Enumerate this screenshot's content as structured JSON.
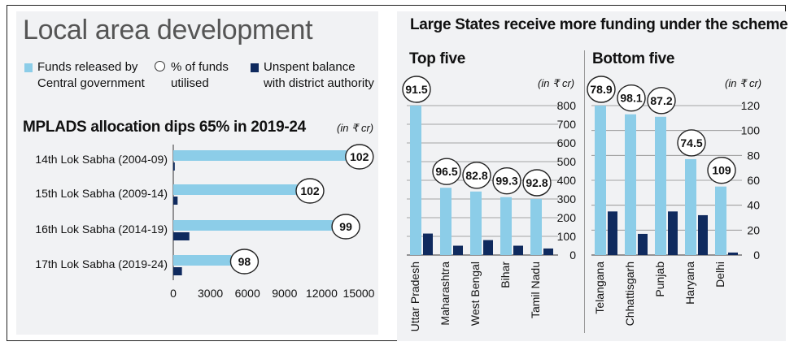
{
  "left": {
    "heading": "Local area development",
    "legend": [
      {
        "label_line1": "Funds released by",
        "label_line2": "Central government"
      },
      {
        "label_line1": "% of funds",
        "label_line2": "utilised"
      },
      {
        "label_line1": "Unspent balance",
        "label_line2": "with district authority"
      }
    ],
    "subheading": "MPLADS allocation dips 65% in 2019-24",
    "unit": "(in ₹ cr)"
  },
  "right": {
    "heading": "Large States receive more funding under the scheme",
    "top_title": "Top five",
    "bottom_title": "Bottom five",
    "unit_top": "(in ₹ cr)",
    "unit_bottom": "(in ₹ cr)"
  },
  "colors": {
    "light": "#8ccde8",
    "dark": "#0f2a5e",
    "panel": "#f1f2f4"
  },
  "chart_data": [
    {
      "type": "bar",
      "orientation": "horizontal",
      "categories": [
        "14th Lok Sabha (2004-09)",
        "15th Lok Sabha (2009-14)",
        "16th Lok Sabha (2014-19)",
        "17th Lok Sabha (2019-24)"
      ],
      "series": [
        {
          "name": "Funds released by Central government",
          "values": [
            14000,
            10000,
            12900,
            4700
          ]
        },
        {
          "name": "Unspent balance with district authority",
          "values": [
            120,
            350,
            1300,
            700
          ]
        }
      ],
      "utilised_pct": [
        "102",
        "102",
        "99",
        "98"
      ],
      "xticks": [
        "0",
        "3000",
        "6000",
        "9000",
        "12000",
        "15000"
      ],
      "xlim": [
        0,
        15000
      ],
      "ylabel": "(in ₹ cr)"
    },
    {
      "type": "bar",
      "title": "Top five",
      "categories": [
        "Uttar Pradesh",
        "Maharashtra",
        "West Bengal",
        "Bihar",
        "Tamil Nadu"
      ],
      "series": [
        {
          "name": "Funds released by Central government",
          "values": [
            800,
            360,
            340,
            310,
            300
          ]
        },
        {
          "name": "Unspent balance with district authority",
          "values": [
            115,
            50,
            80,
            50,
            35
          ]
        }
      ],
      "utilised_pct": [
        "91.5",
        "96.5",
        "82.8",
        "99.3",
        "92.8"
      ],
      "yticks": [
        "0",
        "100",
        "200",
        "300",
        "400",
        "500",
        "600",
        "700",
        "800"
      ],
      "ylim": [
        0,
        800
      ],
      "ylabel": "(in ₹ cr)"
    },
    {
      "type": "bar",
      "title": "Bottom five",
      "categories": [
        "Telangana",
        "Chhattisgarh",
        "Punjab",
        "Haryana",
        "Delhi"
      ],
      "series": [
        {
          "name": "Funds released by Central government",
          "values": [
            120,
            113,
            111,
            77,
            55
          ]
        },
        {
          "name": "Unspent balance with district authority",
          "values": [
            35,
            17,
            35,
            32,
            2
          ]
        }
      ],
      "utilised_pct": [
        "78.9",
        "98.1",
        "87.2",
        "74.5",
        "109"
      ],
      "yticks": [
        "0",
        "20",
        "40",
        "60",
        "80",
        "100",
        "120"
      ],
      "ylim": [
        0,
        120
      ],
      "ylabel": "(in ₹ cr)"
    }
  ]
}
